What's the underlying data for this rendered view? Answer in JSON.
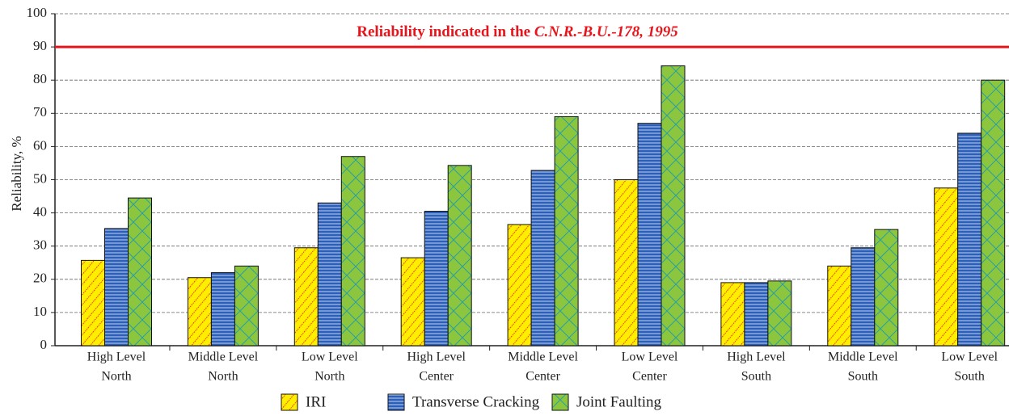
{
  "chart_data": {
    "type": "bar",
    "y_label": "Reliability, %",
    "categories": [
      [
        "High  Level",
        "North"
      ],
      [
        "Middle Level",
        "North"
      ],
      [
        "Low  Level",
        "North"
      ],
      [
        "High  Level",
        "Center"
      ],
      [
        "Middle  Level",
        "Center"
      ],
      [
        "Low  Level",
        "Center"
      ],
      [
        "High  Level",
        "South"
      ],
      [
        "Middle  Level",
        "South"
      ],
      [
        "Low  Level",
        "South"
      ]
    ],
    "series": [
      {
        "name": "IRI",
        "color": "#ffee00",
        "values": [
          25.7,
          20.5,
          29.5,
          26.5,
          36.5,
          50,
          19,
          24,
          47.5
        ]
      },
      {
        "name": "Transverse Cracking",
        "color": "#2c5fb5",
        "values": [
          35.3,
          22,
          43,
          40.5,
          52.8,
          67,
          19,
          29.5,
          64
        ]
      },
      {
        "name": "Joint Faulting",
        "color": "#8cc63f",
        "values": [
          44.5,
          24,
          57,
          54.3,
          69,
          84.3,
          19.5,
          35,
          80
        ]
      }
    ],
    "reference_line": {
      "value": 90,
      "color": "#e8141b",
      "label": "Reliability indicated in the ",
      "label_italic": "C.N.R.-B.U.-178, 1995"
    },
    "ylim": [
      0,
      100
    ],
    "yticks": [
      0,
      10,
      20,
      30,
      40,
      50,
      60,
      70,
      80,
      90,
      100
    ],
    "grid": true
  }
}
